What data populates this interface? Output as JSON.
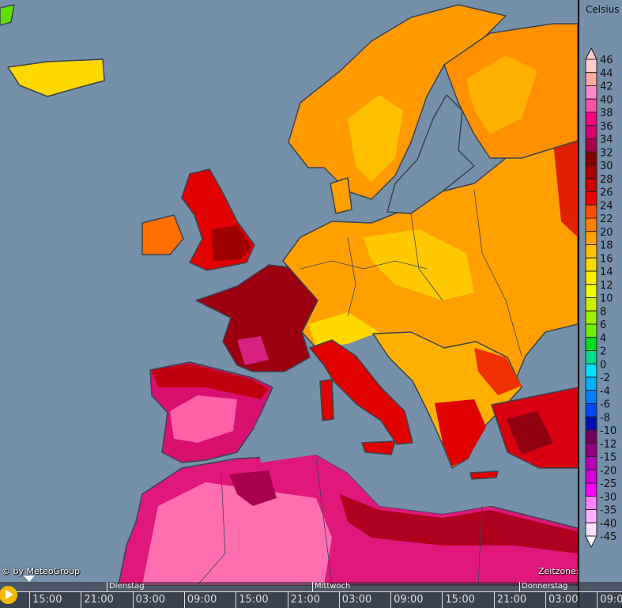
{
  "legend": {
    "title": "Celsius",
    "labels": [
      "46",
      "44",
      "42",
      "40",
      "38",
      "36",
      "34",
      "32",
      "30",
      "28",
      "26",
      "24",
      "22",
      "20",
      "18",
      "16",
      "14",
      "12",
      "10",
      "8",
      "6",
      "4",
      "2",
      "0",
      "-2",
      "-4",
      "-6",
      "-8",
      "-10",
      "-12",
      "-15",
      "-20",
      "-25",
      "-30",
      "-35",
      "-40",
      "-45"
    ],
    "colors": [
      "#ffcccc",
      "#ffa8a8",
      "#ff88c8",
      "#ff50a8",
      "#ff0080",
      "#d80070",
      "#a8004c",
      "#800000",
      "#a80000",
      "#cc0000",
      "#f00000",
      "#ff5000",
      "#ff8000",
      "#ffa000",
      "#ffc000",
      "#ffd800",
      "#ffee00",
      "#f0ff00",
      "#c8f000",
      "#a0f000",
      "#70f000",
      "#00e020",
      "#00d890",
      "#00e0ff",
      "#00b0ff",
      "#0080ff",
      "#0048f0",
      "#0010b0",
      "#700060",
      "#900080",
      "#b800b8",
      "#d800d8",
      "#ff00ff",
      "#ff80ff",
      "#ffb0ff",
      "#ffe0ff"
    ]
  },
  "credits": {
    "copyright": "© by MeteoGroup",
    "timezone": "Zeitzone: Etc/UTC"
  },
  "timeline": {
    "days": [
      "Dienstag",
      "Mittwoch",
      "Donnerstag"
    ],
    "times": [
      "15:00",
      "21:00",
      "03:00",
      "09:00",
      "15:00",
      "21:00",
      "03:00",
      "09:00",
      "15:00",
      "21:00",
      "03:00",
      "09:00"
    ]
  },
  "map_colors": {
    "ocean": "#7590a8",
    "coast": "#3a4450"
  }
}
